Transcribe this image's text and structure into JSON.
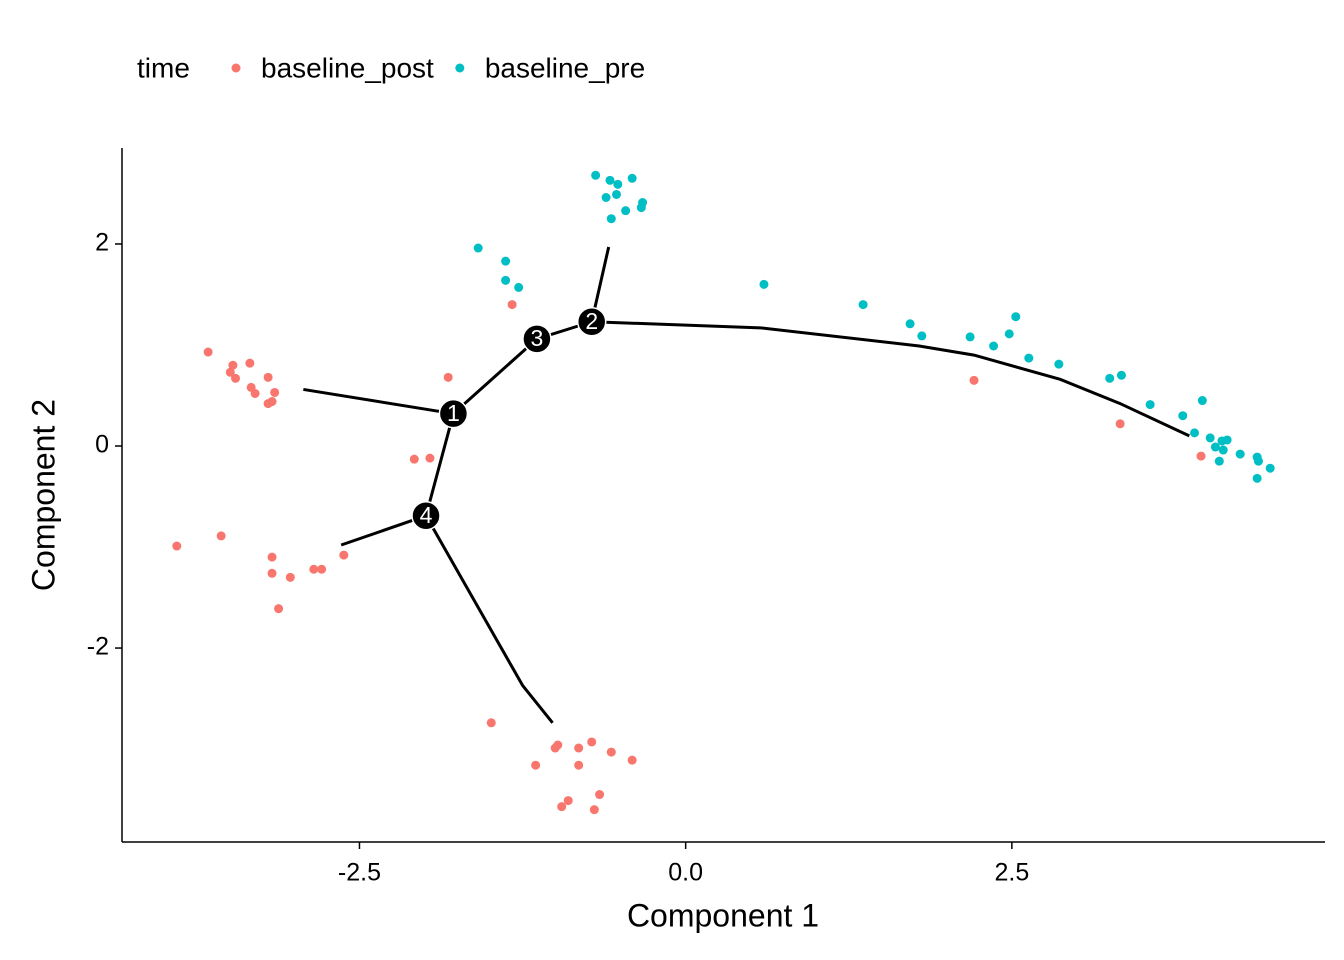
{
  "chart_data": {
    "type": "scatter",
    "legend_title": "time",
    "x_label": "Component 1",
    "y_label": "Component 2",
    "xlim": [
      -4.32,
      4.9
    ],
    "ylim": [
      -3.92,
      2.95
    ],
    "xticks": [
      -2.5,
      {
        "value": 0,
        "label": "0.0"
      },
      2.5
    ],
    "yticks": [
      -2,
      0,
      2
    ],
    "grid": false,
    "series": [
      {
        "name": "baseline_post",
        "color": "#F8766D",
        "x": [
          -3.66,
          -3.47,
          -3.34,
          -3.49,
          -3.45,
          -3.33,
          -3.3,
          -3.2,
          -3.15,
          -3.2,
          -3.17,
          -1.33,
          -1.82,
          -2.08,
          -1.96,
          -3.9,
          -3.56,
          -3.17,
          -3.17,
          -3.03,
          -2.85,
          -2.79,
          -2.62,
          -3.12,
          -1.49,
          -1.0,
          -0.98,
          -1.15,
          -0.82,
          -0.72,
          -0.82,
          -0.57,
          -0.41,
          -0.66,
          -0.9,
          -0.95,
          -0.7,
          2.21,
          3.33,
          3.95
        ],
        "y": [
          0.93,
          0.8,
          0.82,
          0.73,
          0.67,
          0.58,
          0.52,
          0.68,
          0.53,
          0.42,
          0.44,
          1.4,
          0.68,
          -0.13,
          -0.12,
          -0.99,
          -0.89,
          -1.1,
          -1.26,
          -1.3,
          -1.22,
          -1.22,
          -1.08,
          -1.61,
          -2.74,
          -2.99,
          -2.96,
          -3.16,
          -2.99,
          -2.93,
          -3.16,
          -3.03,
          -3.11,
          -3.45,
          -3.51,
          -3.57,
          -3.6,
          0.65,
          0.22,
          -0.1
        ]
      },
      {
        "name": "baseline_pre",
        "color": "#00BFC4",
        "x": [
          -0.69,
          -0.58,
          -0.52,
          -0.41,
          -0.61,
          -0.53,
          -0.33,
          -0.34,
          -0.46,
          -0.57,
          -1.59,
          -1.38,
          -1.38,
          -1.28,
          0.6,
          1.36,
          1.72,
          1.81,
          2.18,
          2.53,
          2.48,
          2.36,
          2.63,
          2.86,
          3.25,
          3.34,
          3.56,
          3.81,
          3.96,
          3.9,
          4.02,
          4.11,
          4.15,
          4.06,
          4.12,
          4.09,
          4.25,
          4.38,
          4.39,
          4.48,
          4.38
        ],
        "y": [
          2.68,
          2.63,
          2.59,
          2.65,
          2.46,
          2.49,
          2.41,
          2.36,
          2.33,
          2.25,
          1.96,
          1.83,
          1.64,
          1.57,
          1.6,
          1.4,
          1.21,
          1.09,
          1.08,
          1.28,
          1.11,
          0.99,
          0.87,
          0.81,
          0.67,
          0.7,
          0.41,
          0.3,
          0.45,
          0.13,
          0.08,
          0.05,
          0.06,
          -0.01,
          -0.04,
          -0.15,
          -0.08,
          -0.11,
          -0.15,
          -0.22,
          -0.32
        ]
      }
    ],
    "trajectory": [
      {
        "x": [
          -2.93,
          -1.78
        ],
        "y": [
          0.56,
          0.32
        ]
      },
      {
        "x": [
          -1.78,
          -1.14,
          -0.72
        ],
        "y": [
          0.32,
          1.06,
          1.23
        ]
      },
      {
        "x": [
          -0.72,
          -0.59
        ],
        "y": [
          1.23,
          1.97
        ]
      },
      {
        "x": [
          -0.72,
          0.57,
          1.79,
          2.21,
          2.87,
          3.33,
          3.86
        ],
        "y": [
          1.23,
          1.17,
          0.99,
          0.9,
          0.66,
          0.42,
          0.1
        ]
      },
      {
        "x": [
          -1.78,
          -1.99
        ],
        "y": [
          0.32,
          -0.69
        ]
      },
      {
        "x": [
          -1.99,
          -2.64
        ],
        "y": [
          -0.69,
          -0.98
        ]
      },
      {
        "x": [
          -1.99,
          -1.25,
          -1.02
        ],
        "y": [
          -0.69,
          -2.37,
          -2.74
        ]
      }
    ],
    "branch_points": {
      "labels": [
        "1",
        "2",
        "3",
        "4"
      ],
      "x": [
        -1.78,
        -0.72,
        -1.14,
        -1.99
      ],
      "y": [
        0.32,
        1.23,
        1.06,
        -0.69
      ]
    }
  }
}
